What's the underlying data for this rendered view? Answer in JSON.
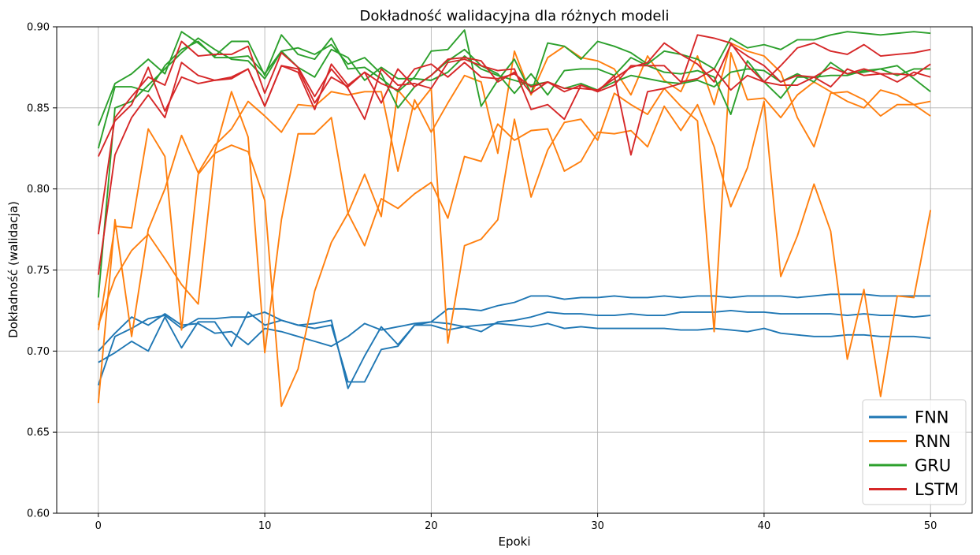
{
  "chart_data": {
    "type": "line",
    "title": "Dokładność walidacyjna dla różnych modeli",
    "xlabel": "Epoki",
    "ylabel": "Dokładność (walidacja)",
    "xlim": [
      -2.5,
      52.5
    ],
    "ylim": [
      0.6,
      0.9
    ],
    "xticks": [
      0,
      10,
      20,
      30,
      40,
      50
    ],
    "yticks": [
      0.6,
      0.65,
      0.7,
      0.75,
      0.8,
      0.85,
      0.9
    ],
    "ytick_labels": [
      "0.60",
      "0.65",
      "0.70",
      "0.75",
      "0.80",
      "0.85",
      "0.90"
    ],
    "grid": true,
    "legend_position": "lower-right",
    "legend": [
      {
        "name": "FNN",
        "color": "#1f77b4"
      },
      {
        "name": "RNN",
        "color": "#ff7f0e"
      },
      {
        "name": "GRU",
        "color": "#2ca02c"
      },
      {
        "name": "LSTM",
        "color": "#d62728"
      }
    ],
    "series": [
      {
        "group": "FNN",
        "color": "#1f77b4",
        "values": [
          0.7,
          0.711,
          0.721,
          0.716,
          0.723,
          0.716,
          0.717,
          0.711,
          0.712,
          0.704,
          0.714,
          0.712,
          0.709,
          0.706,
          0.703,
          0.709,
          0.717,
          0.713,
          0.715,
          0.717,
          0.718,
          0.726,
          0.726,
          0.725,
          0.728,
          0.73,
          0.734,
          0.734,
          0.732,
          0.733,
          0.733,
          0.734,
          0.733,
          0.733,
          0.734,
          0.733,
          0.734,
          0.734,
          0.733,
          0.734,
          0.734,
          0.734,
          0.733,
          0.734,
          0.735,
          0.735,
          0.735,
          0.734,
          0.734,
          0.734,
          0.734
        ]
      },
      {
        "group": "FNN",
        "color": "#1f77b4",
        "values": [
          0.693,
          0.699,
          0.706,
          0.7,
          0.721,
          0.702,
          0.718,
          0.718,
          0.703,
          0.724,
          0.716,
          0.719,
          0.716,
          0.714,
          0.716,
          0.681,
          0.681,
          0.701,
          0.703,
          0.716,
          0.716,
          0.713,
          0.715,
          0.712,
          0.718,
          0.719,
          0.721,
          0.724,
          0.723,
          0.723,
          0.722,
          0.722,
          0.723,
          0.722,
          0.722,
          0.724,
          0.724,
          0.724,
          0.725,
          0.724,
          0.724,
          0.723,
          0.723,
          0.723,
          0.723,
          0.722,
          0.723,
          0.722,
          0.722,
          0.721,
          0.722
        ]
      },
      {
        "group": "FNN",
        "color": "#1f77b4",
        "values": [
          0.679,
          0.709,
          0.714,
          0.72,
          0.722,
          0.714,
          0.72,
          0.72,
          0.721,
          0.721,
          0.724,
          0.719,
          0.716,
          0.717,
          0.719,
          0.677,
          0.697,
          0.715,
          0.704,
          0.716,
          0.718,
          0.717,
          0.715,
          0.716,
          0.717,
          0.716,
          0.715,
          0.717,
          0.714,
          0.715,
          0.714,
          0.714,
          0.714,
          0.714,
          0.714,
          0.713,
          0.713,
          0.714,
          0.713,
          0.712,
          0.714,
          0.711,
          0.71,
          0.709,
          0.709,
          0.71,
          0.71,
          0.709,
          0.709,
          0.709,
          0.708
        ]
      },
      {
        "group": "RNN",
        "color": "#ff7f0e",
        "values": [
          0.668,
          0.781,
          0.709,
          0.775,
          0.8,
          0.833,
          0.81,
          0.827,
          0.837,
          0.854,
          0.845,
          0.835,
          0.852,
          0.851,
          0.86,
          0.858,
          0.86,
          0.86,
          0.811,
          0.855,
          0.835,
          0.853,
          0.87,
          0.866,
          0.822,
          0.885,
          0.858,
          0.881,
          0.888,
          0.881,
          0.879,
          0.874,
          0.858,
          0.882,
          0.867,
          0.86,
          0.882,
          0.852,
          0.89,
          0.885,
          0.882,
          0.872,
          0.844,
          0.826,
          0.859,
          0.86,
          0.855,
          0.845,
          0.852,
          0.852,
          0.854
        ]
      },
      {
        "group": "RNN",
        "color": "#ff7f0e",
        "values": [
          0.713,
          0.777,
          0.776,
          0.837,
          0.82,
          0.713,
          0.809,
          0.822,
          0.827,
          0.823,
          0.793,
          0.666,
          0.689,
          0.737,
          0.767,
          0.785,
          0.765,
          0.794,
          0.788,
          0.797,
          0.804,
          0.782,
          0.82,
          0.817,
          0.84,
          0.83,
          0.836,
          0.837,
          0.811,
          0.817,
          0.835,
          0.834,
          0.836,
          0.826,
          0.851,
          0.836,
          0.852,
          0.826,
          0.789,
          0.813,
          0.854,
          0.746,
          0.771,
          0.803,
          0.774,
          0.695,
          0.738,
          0.672,
          0.734,
          0.733,
          0.787
        ]
      },
      {
        "group": "RNN",
        "color": "#ff7f0e",
        "values": [
          0.716,
          0.745,
          0.762,
          0.772,
          0.757,
          0.741,
          0.729,
          0.823,
          0.86,
          0.832,
          0.699,
          0.781,
          0.834,
          0.834,
          0.844,
          0.785,
          0.809,
          0.783,
          0.861,
          0.849,
          0.862,
          0.705,
          0.765,
          0.769,
          0.781,
          0.843,
          0.795,
          0.824,
          0.841,
          0.843,
          0.83,
          0.859,
          0.852,
          0.846,
          0.862,
          0.851,
          0.842,
          0.712,
          0.884,
          0.855,
          0.856,
          0.844,
          0.858,
          0.866,
          0.86,
          0.854,
          0.85,
          0.861,
          0.858,
          0.852,
          0.845
        ]
      },
      {
        "group": "GRU",
        "color": "#2ca02c",
        "values": [
          0.839,
          0.865,
          0.871,
          0.88,
          0.871,
          0.897,
          0.89,
          0.882,
          0.891,
          0.891,
          0.87,
          0.895,
          0.883,
          0.88,
          0.893,
          0.874,
          0.875,
          0.868,
          0.86,
          0.869,
          0.885,
          0.886,
          0.898,
          0.851,
          0.867,
          0.88,
          0.859,
          0.89,
          0.888,
          0.88,
          0.891,
          0.888,
          0.884,
          0.877,
          0.885,
          0.883,
          0.88,
          0.874,
          0.893,
          0.887,
          0.889,
          0.886,
          0.892,
          0.892,
          0.895,
          0.897,
          0.896,
          0.895,
          0.896,
          0.897,
          0.896
        ]
      },
      {
        "group": "GRU",
        "color": "#2ca02c",
        "values": [
          0.825,
          0.863,
          0.863,
          0.86,
          0.876,
          0.886,
          0.891,
          0.881,
          0.881,
          0.882,
          0.871,
          0.885,
          0.887,
          0.883,
          0.889,
          0.877,
          0.881,
          0.871,
          0.85,
          0.863,
          0.87,
          0.879,
          0.886,
          0.876,
          0.871,
          0.859,
          0.871,
          0.858,
          0.873,
          0.874,
          0.874,
          0.87,
          0.881,
          0.876,
          0.872,
          0.871,
          0.873,
          0.869,
          0.846,
          0.879,
          0.866,
          0.856,
          0.869,
          0.869,
          0.87,
          0.87,
          0.873,
          0.874,
          0.876,
          0.868,
          0.86
        ]
      },
      {
        "group": "GRU",
        "color": "#2ca02c",
        "values": [
          0.733,
          0.85,
          0.854,
          0.864,
          0.874,
          0.884,
          0.893,
          0.886,
          0.88,
          0.879,
          0.868,
          0.885,
          0.875,
          0.869,
          0.886,
          0.881,
          0.867,
          0.875,
          0.868,
          0.868,
          0.867,
          0.872,
          0.882,
          0.874,
          0.87,
          0.867,
          0.864,
          0.866,
          0.862,
          0.865,
          0.861,
          0.866,
          0.87,
          0.868,
          0.866,
          0.865,
          0.867,
          0.863,
          0.872,
          0.874,
          0.873,
          0.866,
          0.871,
          0.866,
          0.878,
          0.871,
          0.872,
          0.874,
          0.87,
          0.874,
          0.874
        ]
      },
      {
        "group": "LSTM",
        "color": "#d62728",
        "values": [
          0.82,
          0.842,
          0.852,
          0.875,
          0.848,
          0.869,
          0.865,
          0.867,
          0.868,
          0.874,
          0.851,
          0.876,
          0.872,
          0.849,
          0.877,
          0.864,
          0.872,
          0.865,
          0.861,
          0.874,
          0.877,
          0.869,
          0.878,
          0.869,
          0.868,
          0.871,
          0.863,
          0.866,
          0.86,
          0.864,
          0.86,
          0.864,
          0.876,
          0.876,
          0.876,
          0.866,
          0.868,
          0.874,
          0.861,
          0.87,
          0.866,
          0.876,
          0.887,
          0.89,
          0.885,
          0.883,
          0.889,
          0.882,
          0.883,
          0.884,
          0.886
        ]
      },
      {
        "group": "LSTM",
        "color": "#d62728",
        "values": [
          0.772,
          0.844,
          0.857,
          0.869,
          0.864,
          0.891,
          0.882,
          0.883,
          0.883,
          0.888,
          0.859,
          0.884,
          0.875,
          0.857,
          0.874,
          0.862,
          0.843,
          0.874,
          0.864,
          0.865,
          0.862,
          0.878,
          0.88,
          0.876,
          0.873,
          0.874,
          0.849,
          0.852,
          0.843,
          0.864,
          0.86,
          0.87,
          0.821,
          0.86,
          0.862,
          0.865,
          0.895,
          0.893,
          0.89,
          0.876,
          0.866,
          0.864,
          0.864,
          0.869,
          0.875,
          0.871,
          0.874,
          0.871,
          0.866,
          0.872,
          0.869
        ]
      },
      {
        "group": "LSTM",
        "color": "#d62728",
        "values": [
          0.747,
          0.821,
          0.844,
          0.858,
          0.844,
          0.878,
          0.87,
          0.867,
          0.869,
          0.874,
          0.851,
          0.876,
          0.874,
          0.853,
          0.869,
          0.863,
          0.872,
          0.853,
          0.874,
          0.863,
          0.87,
          0.88,
          0.881,
          0.879,
          0.866,
          0.872,
          0.859,
          0.866,
          0.862,
          0.862,
          0.861,
          0.868,
          0.875,
          0.878,
          0.89,
          0.883,
          0.877,
          0.866,
          0.889,
          0.882,
          0.876,
          0.866,
          0.87,
          0.869,
          0.863,
          0.874,
          0.87,
          0.871,
          0.871,
          0.87,
          0.877
        ]
      }
    ]
  }
}
